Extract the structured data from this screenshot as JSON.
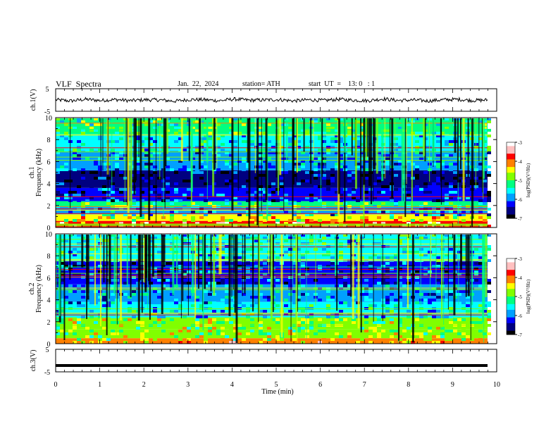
{
  "header": {
    "title": "VLF  Spectra",
    "date": "Jan.  22,  2024",
    "station": "station= ATH",
    "start_ut": "start  UT  =    13: 0   : 1"
  },
  "colors": {
    "colormap": [
      "#000000",
      "#000080",
      "#0000ff",
      "#00a0ff",
      "#00ffff",
      "#00ff80",
      "#80ff00",
      "#ffff00",
      "#ff8000",
      "#ff0000",
      "#ffc0c0",
      "#ffffff"
    ]
  },
  "chart_data": [
    {
      "type": "line",
      "panel": "ch1-waveform",
      "ylabel": "ch.1(V)",
      "ylim": [
        -5,
        5
      ],
      "y_ticks": [
        "5",
        "-5"
      ],
      "xlim": [
        0,
        10
      ],
      "series": [
        {
          "description_values": "noisy trace near 0 V",
          "values": [
            0.1,
            -0.4,
            0.3,
            -0.2,
            0.2,
            -0.3,
            0.1,
            0.0,
            -0.5,
            0.2,
            0.1,
            -0.3,
            0.4,
            -0.1,
            0.0,
            0.2,
            -0.4,
            0.1,
            -0.2,
            0.3,
            -0.1,
            -0.3,
            0.5,
            -0.2,
            0.0,
            -0.4,
            0.1,
            0.3,
            -0.2,
            0.0
          ]
        }
      ]
    },
    {
      "type": "heatmap",
      "panel": "ch1-spectrogram",
      "ylabel": "ch.1\nFrequency  (kHz)",
      "ylim": [
        0,
        10
      ],
      "y_ticks": [
        "0",
        "2",
        "4",
        "6",
        "8",
        "10"
      ],
      "xlim": [
        0,
        10
      ],
      "colorbar": {
        "label": "log(PSD)(V²/Hz)",
        "range": [
          -7,
          -3
        ],
        "ticks": [
          "-3",
          "-4",
          "-5",
          "-6",
          "-7"
        ]
      },
      "bands": [
        {
          "from_khz": 0.0,
          "to_khz": 0.6,
          "level": 9
        },
        {
          "from_khz": 0.6,
          "to_khz": 1.2,
          "level": 7
        },
        {
          "from_khz": 1.2,
          "to_khz": 1.9,
          "level": 3
        },
        {
          "from_khz": 1.9,
          "to_khz": 2.4,
          "level": 5
        },
        {
          "from_khz": 2.4,
          "to_khz": 3.6,
          "level": 2
        },
        {
          "from_khz": 3.6,
          "to_khz": 5.2,
          "level": 1
        },
        {
          "from_khz": 5.2,
          "to_khz": 7.0,
          "level": 3
        },
        {
          "from_khz": 7.0,
          "to_khz": 8.5,
          "level": 4
        },
        {
          "from_khz": 8.5,
          "to_khz": 10.0,
          "level": 5
        }
      ]
    },
    {
      "type": "heatmap",
      "panel": "ch2-spectrogram",
      "ylabel": "ch.2\nFrequency  (kHz)",
      "ylim": [
        0,
        10
      ],
      "y_ticks": [
        "0",
        "2",
        "4",
        "6",
        "8",
        "10"
      ],
      "xlim": [
        0,
        10
      ],
      "colorbar": {
        "label": "log(PSD)(V²/Hz)",
        "range": [
          -7,
          -3
        ],
        "ticks": [
          "-3",
          "-4",
          "-5",
          "-6",
          "-7"
        ]
      },
      "bands": [
        {
          "from_khz": 0.0,
          "to_khz": 0.5,
          "level": 8
        },
        {
          "from_khz": 0.5,
          "to_khz": 1.3,
          "level": 6
        },
        {
          "from_khz": 1.3,
          "to_khz": 2.4,
          "level": 6
        },
        {
          "from_khz": 2.4,
          "to_khz": 3.8,
          "level": 4
        },
        {
          "from_khz": 3.8,
          "to_khz": 5.4,
          "level": 3
        },
        {
          "from_khz": 5.4,
          "to_khz": 7.5,
          "level": 2
        },
        {
          "from_khz": 7.5,
          "to_khz": 10.0,
          "level": 4
        }
      ]
    },
    {
      "type": "line",
      "panel": "ch3-waveform",
      "ylabel": "ch.3(V)",
      "ylim": [
        -5,
        5
      ],
      "y_ticks": [
        "5",
        "-5"
      ],
      "xlim": [
        0,
        10
      ],
      "xlabel": "Time  (min)",
      "x_ticks": [
        "0",
        "1",
        "2",
        "3",
        "4",
        "5",
        "6",
        "7",
        "8",
        "9",
        "10"
      ],
      "series": [
        {
          "values": [
            -2.2,
            -2.2
          ]
        }
      ]
    }
  ]
}
